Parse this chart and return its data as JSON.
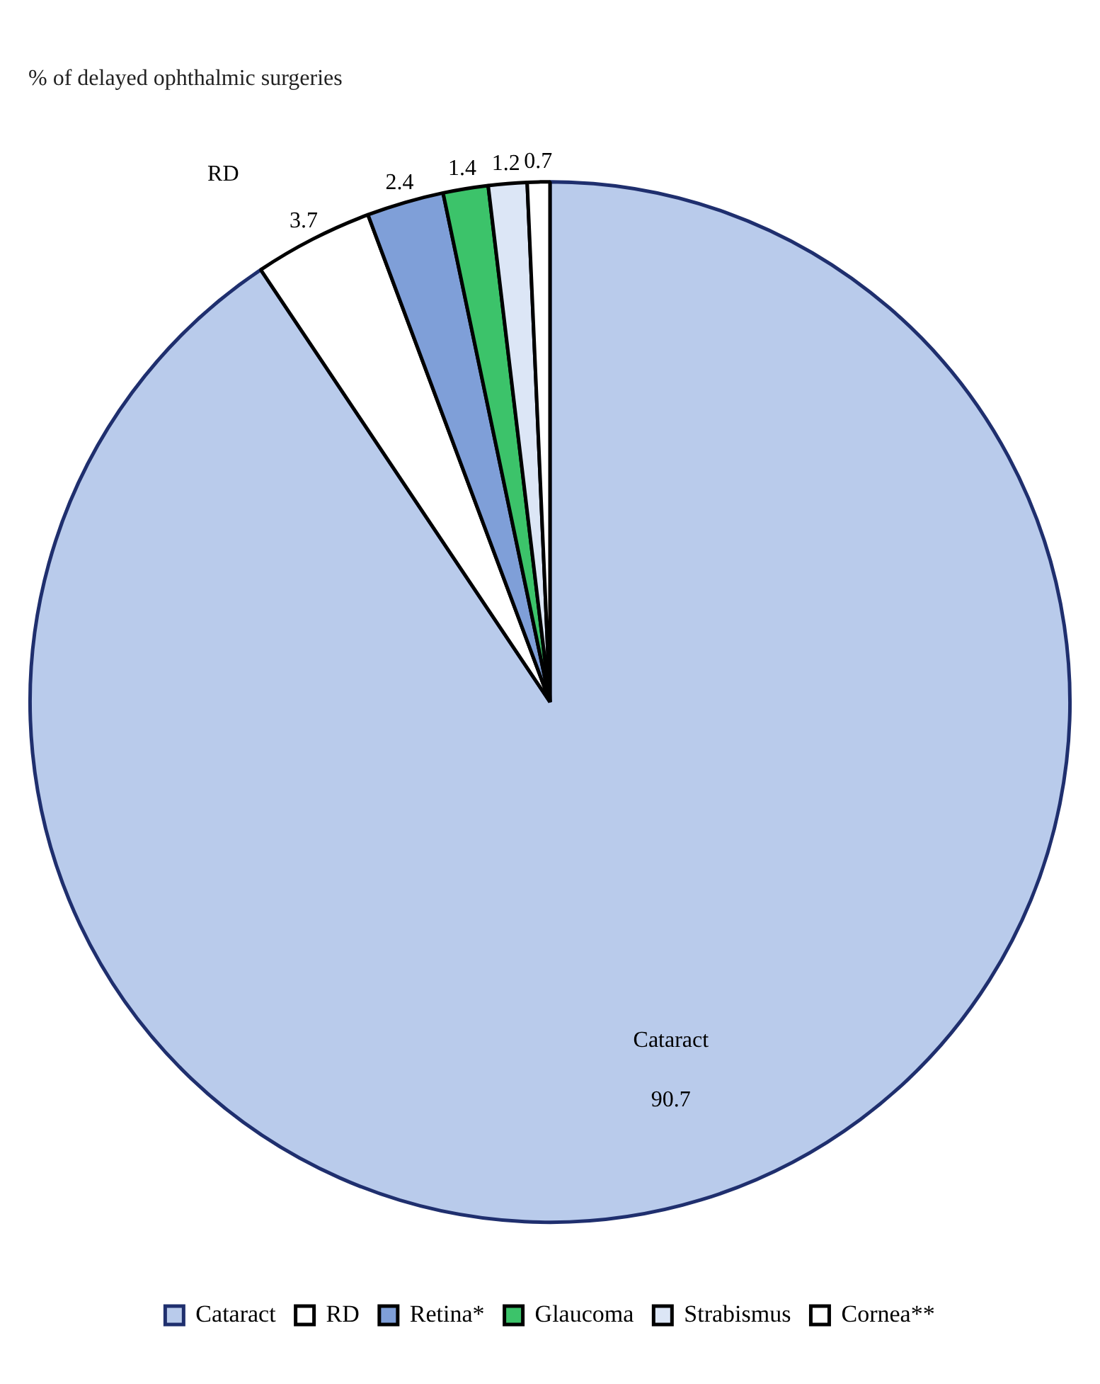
{
  "chart_data": {
    "type": "pie",
    "title": "% of delayed ophthalmic surgeries",
    "categories": [
      "Cataract",
      "RD",
      "Retina*",
      "Glaucoma",
      "Strabismus",
      "Cornea**"
    ],
    "values": [
      90.7,
      3.7,
      2.4,
      1.4,
      1.2,
      0.7
    ],
    "colors": [
      "#b9cbeb",
      "#ffffff",
      "#7f9fd8",
      "#3cc36a",
      "#dce6f6",
      "#ffffff"
    ],
    "data_labels": true,
    "annotations": [
      {
        "text": "Cataract",
        "x": "Cataract"
      },
      {
        "text": "RD",
        "x": "RD"
      }
    ],
    "legend": "bottom"
  }
}
